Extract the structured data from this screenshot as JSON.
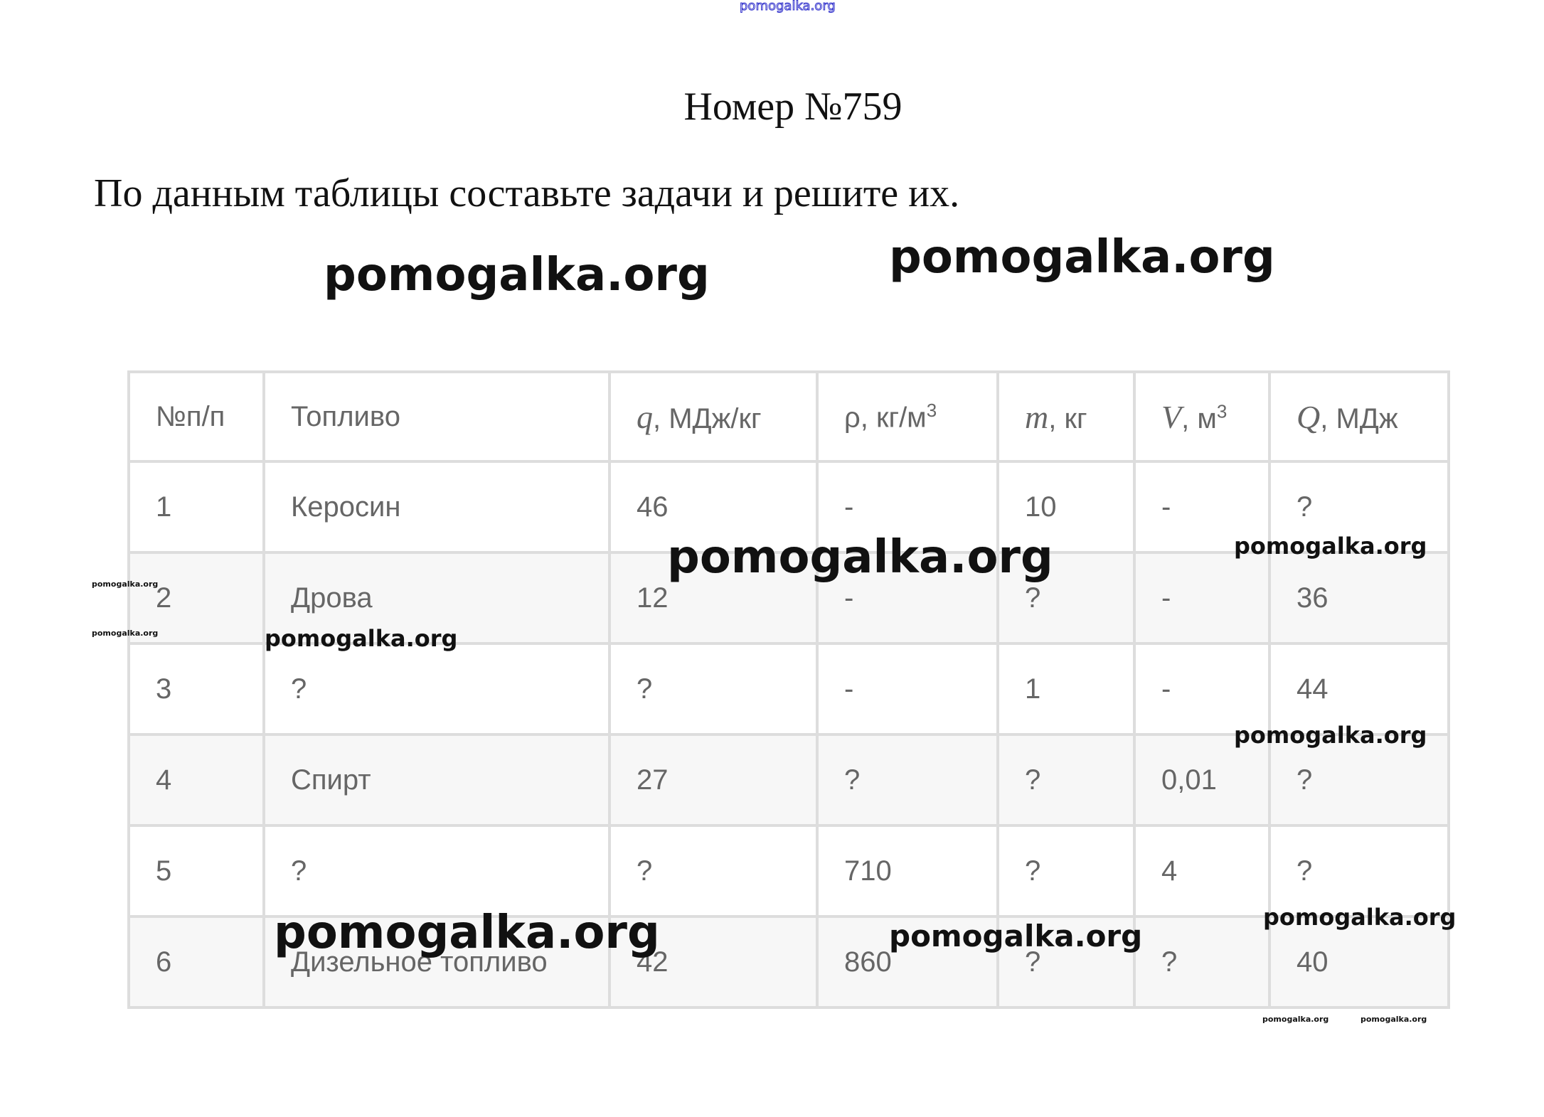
{
  "watermark_text": "pomogalka.org",
  "title": "Номер №759",
  "task": "По данным таблицы составьте задачи и решите их.",
  "table": {
    "headers": [
      {
        "label": "№п/п"
      },
      {
        "label": "Топливо"
      },
      {
        "sym": "q",
        "label": ", МДж/кг"
      },
      {
        "label": "ρ, кг/м",
        "sup": "3"
      },
      {
        "sym": "m",
        "label": ", кг"
      },
      {
        "sym": "V",
        "label": ", м",
        "sup": "3"
      },
      {
        "sym": "Q",
        "label": ", МДж"
      }
    ],
    "rows": [
      [
        "1",
        "Керосин",
        "46",
        "-",
        "10",
        "-",
        "?"
      ],
      [
        "2",
        "Дрова",
        "12",
        "-",
        "?",
        "-",
        "36"
      ],
      [
        "3",
        "?",
        "?",
        "-",
        "1",
        "-",
        "44"
      ],
      [
        "4",
        "Спирт",
        "27",
        "?",
        "?",
        "0,01",
        "?"
      ],
      [
        "5",
        "?",
        "?",
        "710",
        "?",
        "4",
        "?"
      ],
      [
        "6",
        "Дизельное топливо",
        "42",
        "860",
        "?",
        "?",
        "40"
      ]
    ]
  },
  "colors": {
    "watermark_top": "#3333cc",
    "table_border": "#dddddd",
    "table_text": "#666666"
  }
}
